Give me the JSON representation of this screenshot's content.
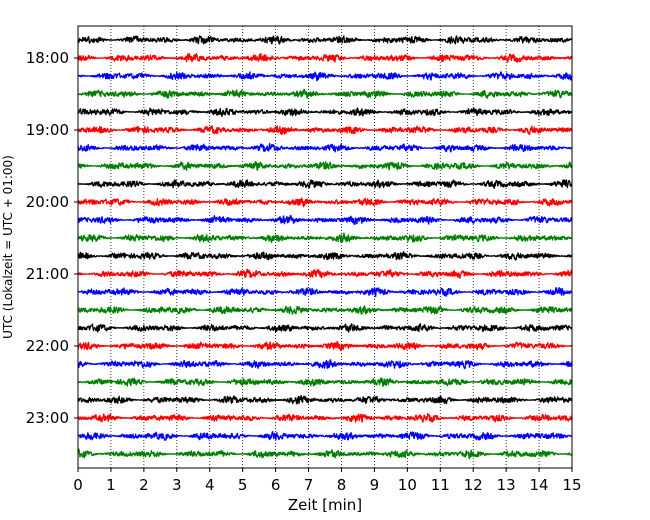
{
  "chart_data": {
    "type": "line",
    "title": "",
    "xlabel": "Zeit  [min]",
    "ylabel": "UTC (Lokalzeit = UTC + 01:00)",
    "xlim": [
      0,
      15
    ],
    "x_ticks": [
      "0",
      "1",
      "2",
      "3",
      "4",
      "5",
      "6",
      "7",
      "8",
      "9",
      "10",
      "11",
      "12",
      "13",
      "14",
      "15"
    ],
    "y_ticks": [
      "18:00",
      "19:00",
      "20:00",
      "21:00",
      "22:00",
      "23:00"
    ],
    "grid": "vertical dotted at each minute",
    "trace_minutes": 15,
    "traces": [
      {
        "start": "17:45",
        "color": "#000000"
      },
      {
        "start": "18:00",
        "color": "#ff0000"
      },
      {
        "start": "18:15",
        "color": "#0000ff"
      },
      {
        "start": "18:30",
        "color": "#007f00"
      },
      {
        "start": "18:45",
        "color": "#000000"
      },
      {
        "start": "19:00",
        "color": "#ff0000"
      },
      {
        "start": "19:15",
        "color": "#0000ff"
      },
      {
        "start": "19:30",
        "color": "#007f00"
      },
      {
        "start": "19:45",
        "color": "#000000"
      },
      {
        "start": "20:00",
        "color": "#ff0000"
      },
      {
        "start": "20:15",
        "color": "#0000ff"
      },
      {
        "start": "20:30",
        "color": "#007f00"
      },
      {
        "start": "20:45",
        "color": "#000000"
      },
      {
        "start": "21:00",
        "color": "#ff0000"
      },
      {
        "start": "21:15",
        "color": "#0000ff"
      },
      {
        "start": "21:30",
        "color": "#007f00"
      },
      {
        "start": "21:45",
        "color": "#000000"
      },
      {
        "start": "22:00",
        "color": "#ff0000"
      },
      {
        "start": "22:15",
        "color": "#0000ff"
      },
      {
        "start": "22:30",
        "color": "#007f00"
      },
      {
        "start": "22:45",
        "color": "#000000"
      },
      {
        "start": "23:00",
        "color": "#ff0000"
      },
      {
        "start": "23:15",
        "color": "#0000ff"
      },
      {
        "start": "23:30",
        "color": "#007f00"
      }
    ]
  }
}
